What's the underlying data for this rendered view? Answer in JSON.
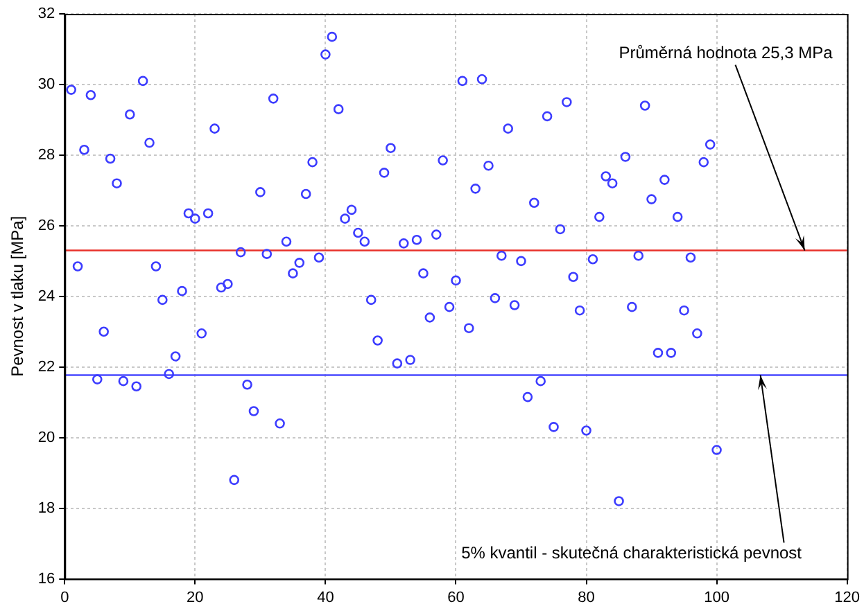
{
  "chart_data": {
    "type": "scatter",
    "ylabel": "Pevnost v tlaku [MPa]",
    "x": [
      1,
      2,
      3,
      4,
      5,
      6,
      7,
      8,
      9,
      10,
      11,
      12,
      13,
      14,
      15,
      16,
      17,
      18,
      19,
      20,
      21,
      22,
      23,
      24,
      25,
      26,
      27,
      28,
      29,
      30,
      31,
      32,
      33,
      34,
      35,
      36,
      37,
      38,
      39,
      40,
      41,
      42,
      43,
      44,
      45,
      46,
      47,
      48,
      49,
      50,
      51,
      52,
      53,
      54,
      55,
      56,
      57,
      58,
      59,
      60,
      61,
      62,
      63,
      64,
      65,
      66,
      67,
      68,
      69,
      70,
      71,
      72,
      73,
      74,
      75,
      76,
      77,
      78,
      79,
      80,
      81,
      82,
      83,
      84,
      85,
      86,
      87,
      88,
      89,
      90,
      91,
      92,
      93,
      94,
      95,
      96,
      97,
      98,
      99,
      100
    ],
    "series": [
      {
        "color": "#3c3cff",
        "values": [
          29.85,
          24.85,
          28.15,
          29.7,
          21.65,
          23.0,
          27.9,
          27.2,
          21.6,
          29.15,
          21.45,
          30.1,
          28.35,
          24.85,
          23.9,
          21.8,
          22.3,
          24.15,
          26.35,
          26.2,
          22.95,
          26.35,
          28.75,
          24.25,
          24.35,
          18.8,
          25.25,
          21.5,
          20.75,
          26.95,
          25.2,
          29.6,
          20.4,
          25.55,
          24.65,
          24.95,
          26.9,
          27.8,
          25.1,
          30.85,
          31.35,
          29.3,
          26.2,
          26.45,
          25.8,
          25.55,
          23.9,
          22.75,
          27.5,
          28.2,
          22.1,
          25.5,
          22.2,
          25.6,
          24.65,
          23.4,
          25.75,
          27.85,
          23.7,
          24.45,
          30.1,
          23.1,
          27.05,
          30.15,
          27.7,
          23.95,
          25.15,
          28.75,
          23.75,
          25.0,
          21.15,
          26.65,
          21.6,
          29.1,
          20.3,
          25.9,
          29.5,
          24.55,
          23.6,
          20.2,
          25.05,
          26.25,
          27.4,
          27.2,
          18.2,
          27.95,
          23.7,
          25.15,
          29.4,
          26.75,
          22.4,
          27.3,
          22.4,
          26.25,
          23.6,
          25.1,
          22.95,
          27.8,
          28.3,
          19.65
        ]
      }
    ],
    "xlim": [
      0,
      120
    ],
    "xticks": [
      0,
      20,
      40,
      60,
      80,
      100,
      120
    ],
    "ylim": [
      16,
      32
    ],
    "yticks": [
      16,
      18,
      20,
      22,
      24,
      26,
      28,
      30,
      32
    ],
    "grid": true,
    "marker": "circle",
    "legend": false,
    "ref_lines": [
      {
        "axis": "y",
        "value": 25.3,
        "color": "#e8302a"
      },
      {
        "axis": "y",
        "value": 21.77,
        "color": "#4a4aff"
      }
    ],
    "annotations": [
      {
        "text": "Průměrná hodnota 25,3 MPa",
        "x": 113.5,
        "y": 25.3
      },
      {
        "text": "5% kvantil - skutečná charakteristická pevnost",
        "x": 106.7,
        "y": 21.77
      }
    ]
  }
}
